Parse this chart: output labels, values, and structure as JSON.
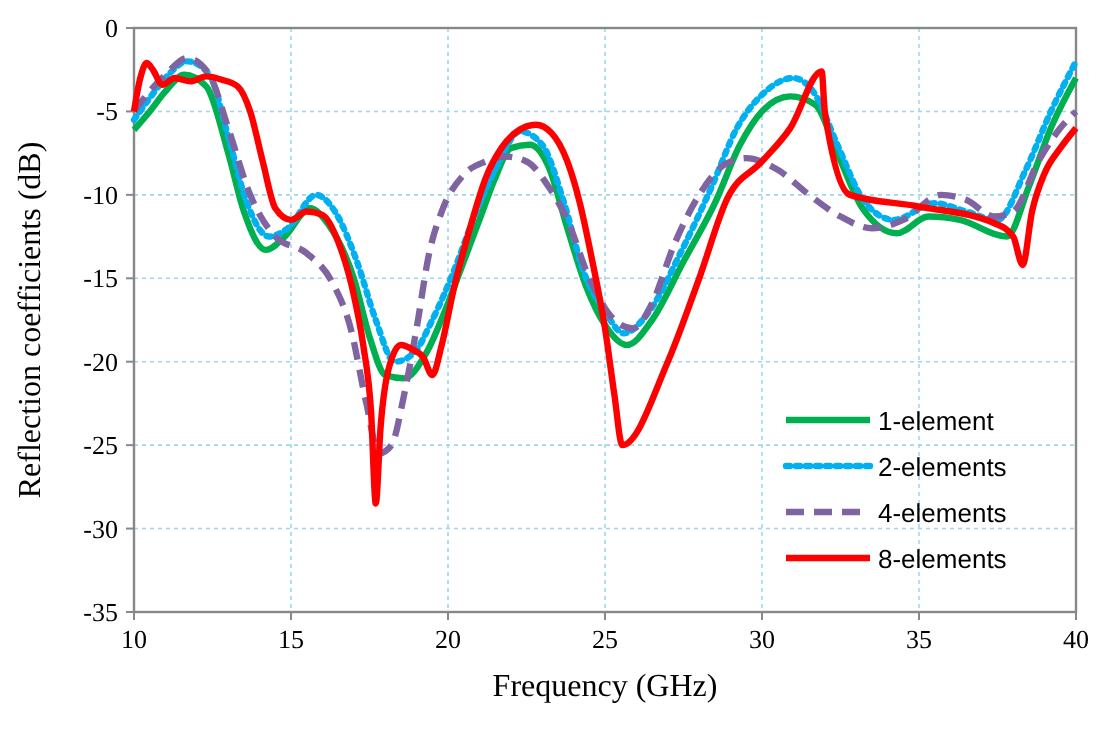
{
  "chart_data": {
    "type": "line",
    "xlabel": "Frequency (GHz)",
    "ylabel": "Reflection coefficients (dB)",
    "xlim": [
      10,
      40
    ],
    "ylim": [
      -35,
      0
    ],
    "xticks": [
      10,
      15,
      20,
      25,
      30,
      35,
      40
    ],
    "yticks": [
      -35,
      -30,
      -25,
      -20,
      -15,
      -10,
      -5,
      0
    ],
    "grid": true,
    "legend": "bottom right",
    "marker": "none",
    "series": [
      {
        "name": "1-element",
        "color": "#00b050",
        "line_style": "solid",
        "x": [
          10,
          10.5,
          11,
          11.6,
          12.3,
          13,
          13.5,
          14.2,
          14.8,
          15.6,
          16.2,
          17,
          17.5,
          18,
          18.6,
          19.3,
          20,
          20.5,
          21,
          21.5,
          22,
          22.6,
          23.2,
          23.8,
          24.4,
          25,
          25.7,
          26.5,
          27.5,
          28.5,
          29.3,
          30,
          30.9,
          31.7,
          32.4,
          33.2,
          34.3,
          35.3,
          36.3,
          37.8,
          38.5,
          39.2,
          40
        ],
        "values": [
          -6.1,
          -5,
          -3.8,
          -2.8,
          -3.5,
          -7.5,
          -11,
          -13.3,
          -12.5,
          -10.8,
          -11.8,
          -15,
          -18.5,
          -20.8,
          -21,
          -19.5,
          -16.5,
          -14,
          -11.5,
          -9,
          -7.2,
          -7,
          -8.3,
          -12,
          -15.5,
          -17.8,
          -19,
          -17.5,
          -14,
          -10.5,
          -7,
          -5,
          -4.1,
          -4.6,
          -7.5,
          -10.8,
          -12.3,
          -11.3,
          -11.5,
          -12.5,
          -9.5,
          -6,
          -3
        ]
      },
      {
        "name": "2-elements",
        "color": "#00b0f0",
        "line_style": "dotted",
        "x": [
          10,
          10.5,
          11,
          11.7,
          12.4,
          13,
          13.6,
          14.3,
          14.9,
          15.8,
          16.4,
          17.1,
          17.7,
          18.3,
          18.9,
          19.5,
          20.2,
          20.8,
          21.5,
          22.3,
          23,
          23.7,
          24.3,
          25,
          25.6,
          26.4,
          27.4,
          28.4,
          29.2,
          30,
          31,
          31.7,
          32.4,
          33.3,
          34.2,
          35.5,
          36.5,
          37.5,
          38.4,
          39.2,
          40
        ],
        "values": [
          -5.5,
          -4.2,
          -3,
          -2,
          -2.8,
          -6.5,
          -10.5,
          -12.5,
          -12,
          -10,
          -11,
          -14,
          -17.5,
          -20,
          -19.5,
          -17.5,
          -14.5,
          -11.5,
          -8.5,
          -6.2,
          -7,
          -10.5,
          -14.5,
          -17,
          -18.3,
          -17,
          -13.5,
          -9.5,
          -6,
          -4,
          -3,
          -4,
          -7,
          -10.5,
          -11.5,
          -10.5,
          -11,
          -11.5,
          -8.5,
          -5,
          -2
        ]
      },
      {
        "name": "4-elements",
        "color": "#8064a2",
        "line_style": "dashed",
        "x": [
          10,
          10.5,
          11,
          11.7,
          12.4,
          13,
          13.7,
          14.5,
          15.5,
          16.3,
          16.9,
          17.4,
          17.8,
          18.2,
          18.6,
          19,
          19.4,
          19.8,
          20.5,
          21.2,
          21.8,
          22.5,
          23.2,
          23.8,
          24.5,
          25.3,
          25.9,
          26.5,
          27.2,
          28,
          28.8,
          29.5,
          30.5,
          31.5,
          32.5,
          33.5,
          34.5,
          35.7,
          36.5,
          37.4,
          38,
          38.8,
          39.5,
          40
        ],
        "values": [
          -5,
          -3.8,
          -2.8,
          -1.8,
          -2.8,
          -6,
          -10,
          -12.5,
          -13.5,
          -15.2,
          -18,
          -22.5,
          -25.5,
          -25,
          -22,
          -18,
          -13.5,
          -11,
          -8.8,
          -8,
          -7.7,
          -8,
          -9.5,
          -11.5,
          -15,
          -17.5,
          -18,
          -16.5,
          -13,
          -10,
          -8.2,
          -7.8,
          -8.5,
          -10,
          -11.3,
          -12,
          -11.5,
          -10,
          -10.3,
          -11.3,
          -11,
          -8,
          -6,
          -5
        ]
      },
      {
        "name": "8-elements",
        "color": "#ff0000",
        "line_style": "solid",
        "x": [
          10,
          10.2,
          10.4,
          10.6,
          10.9,
          11.3,
          11.8,
          12.3,
          12.8,
          13.3,
          13.7,
          14.1,
          14.5,
          15,
          15.5,
          16,
          16.5,
          17,
          17.3,
          17.55,
          17.7,
          17.85,
          18.1,
          18.5,
          18.9,
          19.2,
          19.5,
          19.8,
          20.2,
          20.7,
          21.2,
          21.7,
          22.2,
          22.8,
          23.3,
          23.8,
          24.2,
          24.6,
          25,
          25.3,
          25.55,
          27,
          28,
          28.9,
          30,
          30.9,
          31.9,
          32,
          32.8,
          35,
          37.4,
          38,
          38.3,
          38.6,
          39,
          39.5,
          40
        ],
        "values": [
          -5,
          -3,
          -2.1,
          -2.5,
          -3.4,
          -3,
          -3.2,
          -2.9,
          -3.1,
          -3.5,
          -5,
          -8,
          -10.8,
          -11.5,
          -11,
          -11.2,
          -12.8,
          -16,
          -19,
          -23,
          -28.5,
          -24,
          -20.5,
          -19,
          -19.3,
          -19.7,
          -20.8,
          -19,
          -15.5,
          -12,
          -9,
          -7.2,
          -6.2,
          -5.8,
          -6.3,
          -8,
          -10.5,
          -14,
          -18,
          -22,
          -25,
          -20,
          -15,
          -10.2,
          -8,
          -6,
          -2.6,
          -5,
          -10,
          -10.7,
          -11.7,
          -12.5,
          -14.2,
          -11,
          -8.7,
          -7.2,
          -6
        ]
      }
    ]
  }
}
